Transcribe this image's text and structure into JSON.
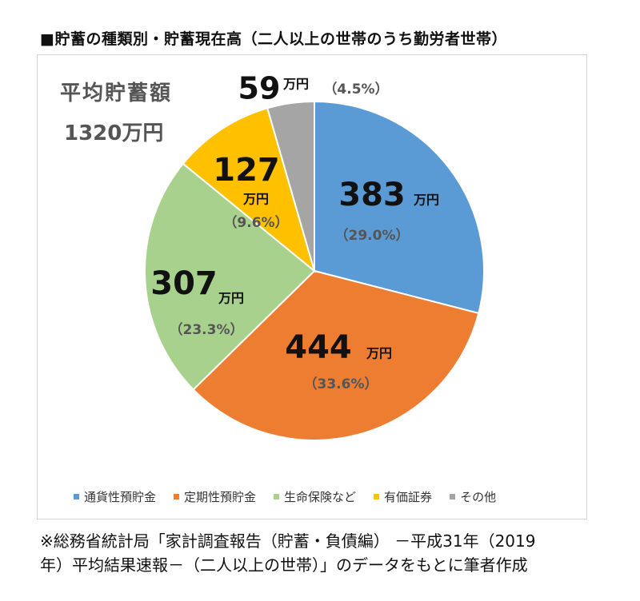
{
  "title": "■貯蓄の種類別・貯蓄現在高（二人以上の世帯のうち勤労者世帯）",
  "average": {
    "label": "平均貯蓄額",
    "value": "1320万円"
  },
  "chart_data": {
    "type": "pie",
    "unit": "万円",
    "total": 1320,
    "slices": [
      {
        "name": "通貨性預貯金",
        "value": 383,
        "value_text": "383",
        "unit_text": "万円",
        "percent_text": "（29.0%）",
        "color": "#5b9bd5"
      },
      {
        "name": "定期性預貯金",
        "value": 444,
        "value_text": "444",
        "unit_text": "万円",
        "percent_text": "（33.6%）",
        "color": "#ed7d31"
      },
      {
        "name": "生命保険など",
        "value": 307,
        "value_text": "307",
        "unit_text": "万円",
        "percent_text": "（23.3%）",
        "color": "#a9d18e"
      },
      {
        "name": "有価証券",
        "value": 127,
        "value_text": "127",
        "unit_text": "万円",
        "percent_text": "（9.6%）",
        "color": "#ffc000"
      },
      {
        "name": "その他",
        "value": 59,
        "value_text": "59",
        "unit_text": "万円",
        "percent_text": "（4.5%）",
        "color": "#a5a5a5"
      }
    ]
  },
  "note": {
    "line1": "※総務省統計局「家計調査報告（貯蓄・負債編） －平成31年（2019",
    "line2": "年）平均結果速報－（二人以上の世帯）」のデータをもとに筆者作成"
  }
}
